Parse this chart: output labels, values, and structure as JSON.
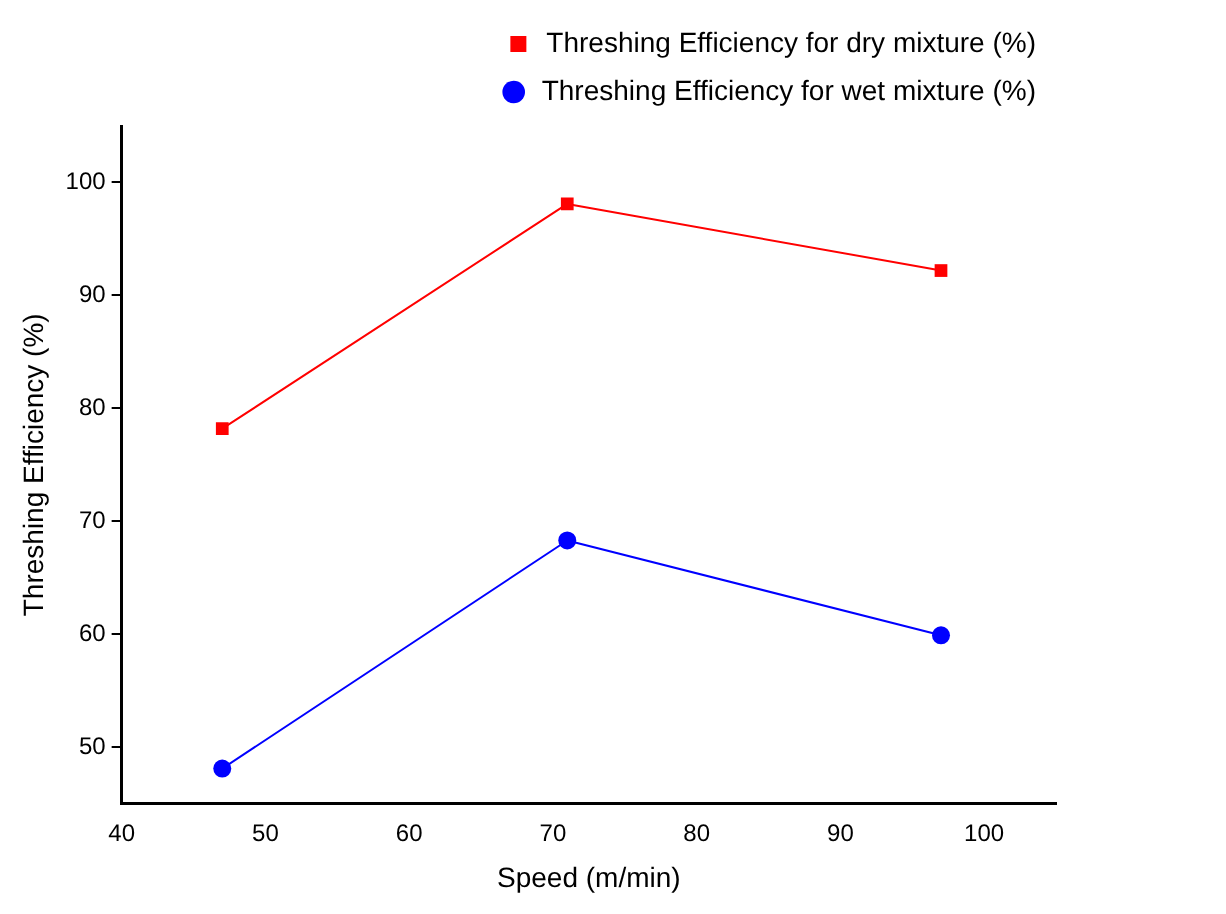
{
  "chart_data": {
    "type": "line",
    "xlabel": "Speed (m/min)",
    "ylabel": "Threshing Efficiency (%)",
    "x": [
      47,
      71,
      97
    ],
    "series": [
      {
        "name": "Threshing Efficiency for dry mixture (%)",
        "color": "#ff0000",
        "values": [
          78.2,
          98.1,
          92.2
        ],
        "marker": "square"
      },
      {
        "name": "Threshing Efficiency for wet mixture (%)",
        "color": "#0000ff",
        "values": [
          48.1,
          68.3,
          59.9
        ],
        "marker": "circle"
      }
    ],
    "xlim": [
      40,
      105
    ],
    "xticks": [
      40,
      50,
      60,
      70,
      80,
      90,
      100
    ],
    "ylim": [
      45,
      105
    ],
    "yticks": [
      50,
      60,
      70,
      80,
      90,
      100
    ],
    "grid": false,
    "legend": "top right",
    "line_style": "solid"
  }
}
